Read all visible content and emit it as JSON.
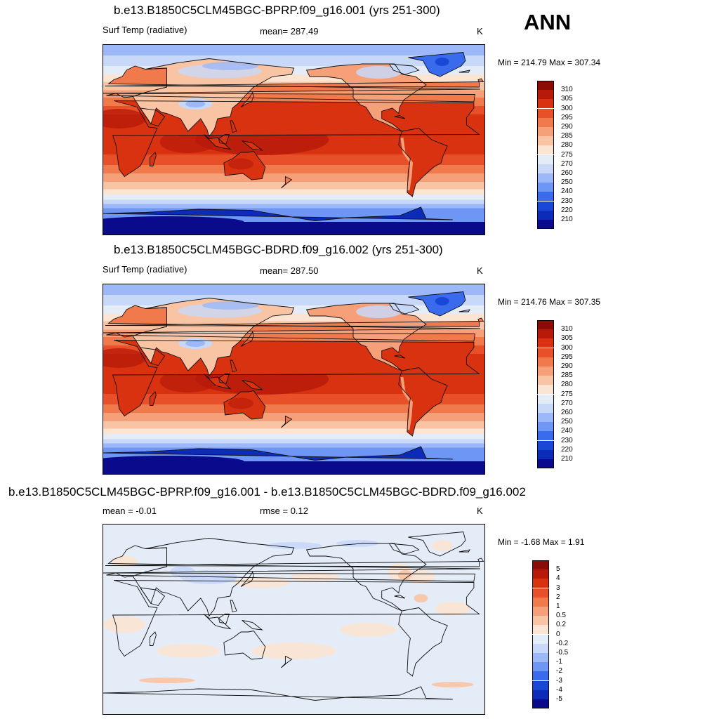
{
  "season": "ANN",
  "colors": {
    "temp_scale": [
      "#0a0a8c",
      "#0b2bb8",
      "#1a48d6",
      "#3a6bec",
      "#6e96f5",
      "#9cb8f8",
      "#c8d8f8",
      "#e4ecf8",
      "#fbe4d2",
      "#f9c4a4",
      "#f6a07a",
      "#f07a4c",
      "#e8502a",
      "#d83210",
      "#b81a0a",
      "#8a0c05"
    ],
    "diff_scale": [
      "#0a0a8c",
      "#0b2bb8",
      "#1a48d6",
      "#3a6bec",
      "#6e96f5",
      "#9cb8f8",
      "#c8d8f8",
      "#e4ecf8",
      "#fbe4d2",
      "#f9c4a4",
      "#f6a07a",
      "#f07a4c",
      "#e8502a",
      "#d83210",
      "#b81a0a",
      "#8a0c05"
    ]
  },
  "panels": [
    {
      "title": "b.e13.B1850C5CLM45BGC-BPRP.f09_g16.001 (yrs 251-300)",
      "left_label": "Surf Temp (radiative)",
      "center_label": "mean= 287.49",
      "units": "K",
      "minmax": "Min = 214.79 Max = 307.34",
      "colorbar_labels": [
        "310",
        "305",
        "300",
        "295",
        "290",
        "285",
        "280",
        "275",
        "270",
        "260",
        "250",
        "240",
        "230",
        "220",
        "210"
      ],
      "field": "temp"
    },
    {
      "title": "b.e13.B1850C5CLM45BGC-BDRD.f09_g16.002 (yrs 251-300)",
      "left_label": "Surf Temp (radiative)",
      "center_label": "mean= 287.50",
      "units": "K",
      "minmax": "Min = 214.76 Max = 307.35",
      "colorbar_labels": [
        "310",
        "305",
        "300",
        "295",
        "290",
        "285",
        "280",
        "275",
        "270",
        "260",
        "250",
        "240",
        "230",
        "220",
        "210"
      ],
      "field": "temp"
    },
    {
      "title": "b.e13.B1850C5CLM45BGC-BPRP.f09_g16.001 - b.e13.B1850C5CLM45BGC-BDRD.f09_g16.002",
      "left_label": "mean =  -0.01",
      "center_label": "rmse =   0.12",
      "units": "K",
      "minmax": "Min =  -1.68 Max =   1.91",
      "colorbar_labels": [
        "5",
        "4",
        "3",
        "2",
        "1",
        "0.5",
        "0.2",
        "0",
        "-0.2",
        "-0.5",
        "-1",
        "-2",
        "-3",
        "-4",
        "-5"
      ],
      "field": "diff"
    }
  ]
}
